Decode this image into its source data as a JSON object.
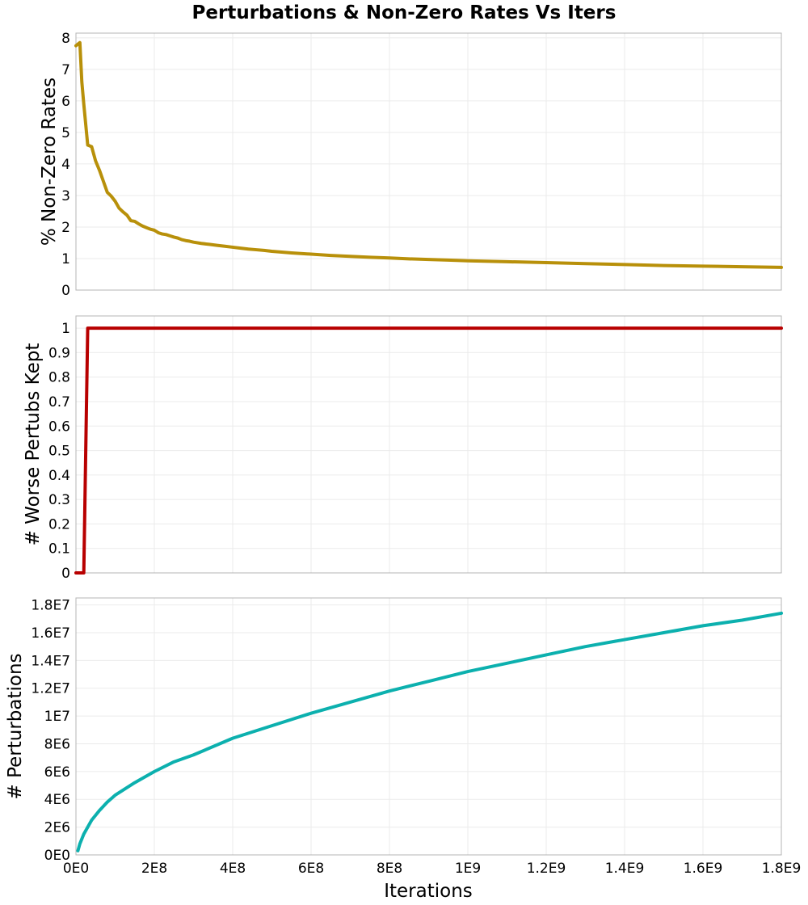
{
  "chart_data": {
    "type": "line",
    "title": "Perturbations & Non-Zero Rates Vs Iters",
    "xlabel": "Iterations",
    "xlim": [
      0,
      1800000000
    ],
    "x_ticks": [
      {
        "value": 0,
        "label": "0E0"
      },
      {
        "value": 200000000,
        "label": "2E8"
      },
      {
        "value": 400000000,
        "label": "4E8"
      },
      {
        "value": 600000000,
        "label": "6E8"
      },
      {
        "value": 800000000,
        "label": "8E8"
      },
      {
        "value": 1000000000,
        "label": "1E9"
      },
      {
        "value": 1200000000,
        "label": "1.2E9"
      },
      {
        "value": 1400000000,
        "label": "1.4E9"
      },
      {
        "value": 1600000000,
        "label": "1.6E9"
      },
      {
        "value": 1800000000,
        "label": "1.8E9"
      }
    ],
    "panels": [
      {
        "name": "nonzero-rates",
        "ylabel": "% Non-Zero Rates",
        "ylim": [
          0,
          8.15
        ],
        "y_ticks": [
          {
            "value": 0,
            "label": "0"
          },
          {
            "value": 1,
            "label": "1"
          },
          {
            "value": 2,
            "label": "2"
          },
          {
            "value": 3,
            "label": "3"
          },
          {
            "value": 4,
            "label": "4"
          },
          {
            "value": 5,
            "label": "5"
          },
          {
            "value": 6,
            "label": "6"
          },
          {
            "value": 7,
            "label": "7"
          },
          {
            "value": 8,
            "label": "8"
          }
        ],
        "color": "#b8900a",
        "series": {
          "name": "% Non-Zero Rates",
          "x": [
            0,
            10000000,
            15000000,
            20000000,
            30000000,
            40000000,
            50000000,
            60000000,
            70000000,
            80000000,
            90000000,
            100000000,
            110000000,
            120000000,
            130000000,
            140000000,
            150000000,
            160000000,
            170000000,
            180000000,
            190000000,
            200000000,
            210000000,
            220000000,
            230000000,
            240000000,
            250000000,
            260000000,
            270000000,
            280000000,
            290000000,
            300000000,
            320000000,
            340000000,
            360000000,
            380000000,
            400000000,
            420000000,
            440000000,
            460000000,
            480000000,
            500000000,
            550000000,
            600000000,
            650000000,
            700000000,
            750000000,
            800000000,
            850000000,
            900000000,
            950000000,
            1000000000,
            1100000000,
            1200000000,
            1300000000,
            1400000000,
            1500000000,
            1600000000,
            1700000000,
            1800000000
          ],
          "y": [
            7.75,
            7.85,
            6.6,
            5.9,
            4.6,
            4.55,
            4.1,
            3.8,
            3.45,
            3.1,
            2.98,
            2.82,
            2.6,
            2.48,
            2.38,
            2.2,
            2.18,
            2.1,
            2.03,
            1.98,
            1.93,
            1.9,
            1.82,
            1.78,
            1.76,
            1.72,
            1.68,
            1.65,
            1.6,
            1.57,
            1.55,
            1.52,
            1.48,
            1.45,
            1.42,
            1.39,
            1.36,
            1.33,
            1.3,
            1.28,
            1.26,
            1.23,
            1.18,
            1.14,
            1.1,
            1.07,
            1.04,
            1.02,
            0.99,
            0.97,
            0.95,
            0.93,
            0.9,
            0.87,
            0.84,
            0.81,
            0.78,
            0.76,
            0.74,
            0.72
          ]
        }
      },
      {
        "name": "worse-perturbs-kept",
        "ylabel": "# Worse Pertubs Kept",
        "ylim": [
          0,
          1.05
        ],
        "y_ticks": [
          {
            "value": 0,
            "label": "0"
          },
          {
            "value": 0.1,
            "label": "0.1"
          },
          {
            "value": 0.2,
            "label": "0.2"
          },
          {
            "value": 0.3,
            "label": "0.3"
          },
          {
            "value": 0.4,
            "label": "0.4"
          },
          {
            "value": 0.5,
            "label": "0.5"
          },
          {
            "value": 0.6,
            "label": "0.6"
          },
          {
            "value": 0.7,
            "label": "0.7"
          },
          {
            "value": 0.8,
            "label": "0.8"
          },
          {
            "value": 0.9,
            "label": "0.9"
          },
          {
            "value": 1,
            "label": "1"
          }
        ],
        "color": "#b80000",
        "series": {
          "name": "# Worse Pertubs Kept",
          "x": [
            0,
            20000000,
            30000000,
            1800000000
          ],
          "y": [
            0,
            0,
            1,
            1
          ]
        }
      },
      {
        "name": "perturbations",
        "ylabel": "# Perturbations",
        "ylim": [
          0,
          18500000
        ],
        "y_ticks": [
          {
            "value": 0,
            "label": "0E0"
          },
          {
            "value": 2000000,
            "label": "2E6"
          },
          {
            "value": 4000000,
            "label": "4E6"
          },
          {
            "value": 6000000,
            "label": "6E6"
          },
          {
            "value": 8000000,
            "label": "8E6"
          },
          {
            "value": 10000000,
            "label": "1E7"
          },
          {
            "value": 12000000,
            "label": "1.2E7"
          },
          {
            "value": 14000000,
            "label": "1.4E7"
          },
          {
            "value": 16000000,
            "label": "1.6E7"
          },
          {
            "value": 18000000,
            "label": "1.8E7"
          }
        ],
        "color": "#0cb0ae",
        "series": {
          "name": "# Perturbations",
          "x": [
            5000000,
            10000000,
            20000000,
            40000000,
            60000000,
            80000000,
            100000000,
            150000000,
            200000000,
            250000000,
            300000000,
            400000000,
            500000000,
            600000000,
            700000000,
            800000000,
            900000000,
            1000000000,
            1100000000,
            1200000000,
            1300000000,
            1400000000,
            1500000000,
            1600000000,
            1700000000,
            1800000000
          ],
          "y": [
            300000,
            800000,
            1500000,
            2500000,
            3200000,
            3800000,
            4300000,
            5200000,
            6000000,
            6700000,
            7200000,
            8400000,
            9300000,
            10200000,
            11000000,
            11800000,
            12500000,
            13200000,
            13800000,
            14400000,
            15000000,
            15500000,
            16000000,
            16500000,
            16900000,
            17400000
          ]
        }
      }
    ]
  }
}
